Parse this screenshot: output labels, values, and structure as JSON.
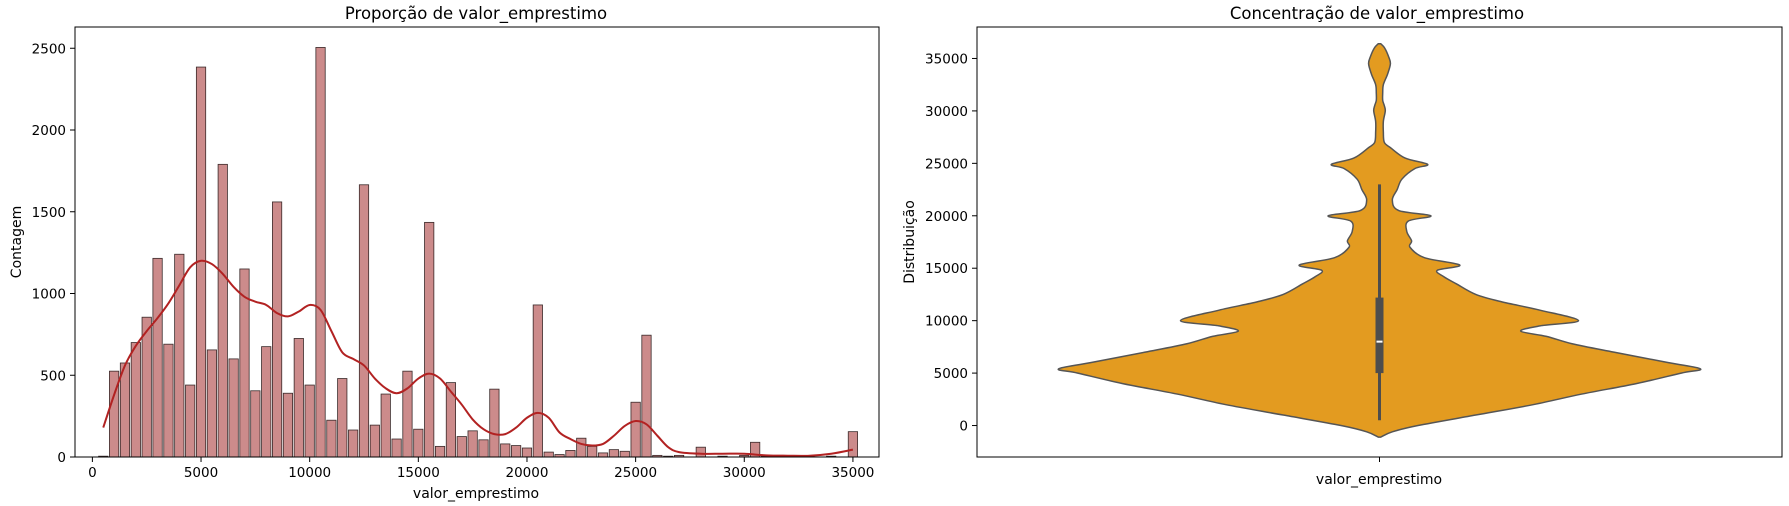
{
  "chart_data": [
    {
      "type": "bar",
      "subtype": "histogram-with-kde",
      "title": "Proporção de valor_emprestimo",
      "xlabel": "valor_emprestimo",
      "ylabel": "Contagem",
      "xlim": [
        -800,
        36200
      ],
      "ylim": [
        0,
        2630
      ],
      "xticks": [
        0,
        5000,
        10000,
        15000,
        20000,
        25000,
        30000,
        35000
      ],
      "yticks": [
        0,
        500,
        1000,
        1500,
        2000,
        2500
      ],
      "grid": false,
      "colors": {
        "bar_fill": "#cc8b8b",
        "bar_edge": "#3a2a2a",
        "kde_line": "#b22222"
      },
      "bin_width": 430,
      "bins": [
        {
          "x": 500,
          "count": 5
        },
        {
          "x": 1000,
          "count": 525
        },
        {
          "x": 1500,
          "count": 575
        },
        {
          "x": 2000,
          "count": 700
        },
        {
          "x": 2500,
          "count": 855
        },
        {
          "x": 3000,
          "count": 1215
        },
        {
          "x": 3500,
          "count": 690
        },
        {
          "x": 4000,
          "count": 1240
        },
        {
          "x": 4500,
          "count": 440
        },
        {
          "x": 5000,
          "count": 2385
        },
        {
          "x": 5500,
          "count": 655
        },
        {
          "x": 6000,
          "count": 1790
        },
        {
          "x": 6500,
          "count": 600
        },
        {
          "x": 7000,
          "count": 1150
        },
        {
          "x": 7500,
          "count": 405
        },
        {
          "x": 8000,
          "count": 675
        },
        {
          "x": 8500,
          "count": 1560
        },
        {
          "x": 9000,
          "count": 390
        },
        {
          "x": 9500,
          "count": 725
        },
        {
          "x": 10000,
          "count": 440
        },
        {
          "x": 10500,
          "count": 2505
        },
        {
          "x": 11000,
          "count": 225
        },
        {
          "x": 11500,
          "count": 480
        },
        {
          "x": 12000,
          "count": 165
        },
        {
          "x": 12500,
          "count": 1665
        },
        {
          "x": 13000,
          "count": 195
        },
        {
          "x": 13500,
          "count": 385
        },
        {
          "x": 14000,
          "count": 110
        },
        {
          "x": 14500,
          "count": 525
        },
        {
          "x": 15000,
          "count": 170
        },
        {
          "x": 15500,
          "count": 1435
        },
        {
          "x": 16000,
          "count": 65
        },
        {
          "x": 16500,
          "count": 455
        },
        {
          "x": 17000,
          "count": 125
        },
        {
          "x": 17500,
          "count": 160
        },
        {
          "x": 18000,
          "count": 105
        },
        {
          "x": 18500,
          "count": 415
        },
        {
          "x": 19000,
          "count": 80
        },
        {
          "x": 19500,
          "count": 70
        },
        {
          "x": 20000,
          "count": 55
        },
        {
          "x": 20500,
          "count": 930
        },
        {
          "x": 21000,
          "count": 30
        },
        {
          "x": 21500,
          "count": 15
        },
        {
          "x": 22000,
          "count": 40
        },
        {
          "x": 22500,
          "count": 115
        },
        {
          "x": 23000,
          "count": 65
        },
        {
          "x": 23500,
          "count": 25
        },
        {
          "x": 24000,
          "count": 45
        },
        {
          "x": 24500,
          "count": 35
        },
        {
          "x": 25000,
          "count": 335
        },
        {
          "x": 25500,
          "count": 745
        },
        {
          "x": 26000,
          "count": 10
        },
        {
          "x": 26500,
          "count": 5
        },
        {
          "x": 27000,
          "count": 10
        },
        {
          "x": 28000,
          "count": 60
        },
        {
          "x": 29000,
          "count": 5
        },
        {
          "x": 30000,
          "count": 10
        },
        {
          "x": 30500,
          "count": 90
        },
        {
          "x": 31000,
          "count": 5
        },
        {
          "x": 32000,
          "count": 5
        },
        {
          "x": 33000,
          "count": 5
        },
        {
          "x": 34000,
          "count": 5
        },
        {
          "x": 35000,
          "count": 155
        }
      ],
      "kde": {
        "x": [
          500,
          1000,
          1500,
          2000,
          2500,
          3000,
          3500,
          4000,
          4500,
          5000,
          5500,
          6000,
          6500,
          7000,
          7500,
          8000,
          8500,
          9000,
          9500,
          10000,
          10500,
          11000,
          11500,
          12000,
          12500,
          13000,
          13500,
          14000,
          14500,
          15000,
          15500,
          16000,
          16500,
          17000,
          17500,
          18000,
          18500,
          19000,
          19500,
          20000,
          20500,
          21000,
          21500,
          22000,
          22500,
          23000,
          23500,
          24000,
          24500,
          25000,
          25500,
          26000,
          26500,
          27000,
          28000,
          29000,
          30000,
          31000,
          32000,
          33000,
          34000,
          35000
        ],
        "y": [
          180,
          380,
          560,
          680,
          770,
          850,
          940,
          1050,
          1160,
          1200,
          1180,
          1120,
          1040,
          980,
          950,
          930,
          880,
          860,
          890,
          930,
          900,
          770,
          640,
          600,
          560,
          480,
          420,
          390,
          420,
          480,
          510,
          480,
          400,
          320,
          230,
          170,
          140,
          140,
          180,
          240,
          270,
          240,
          150,
          110,
          80,
          70,
          80,
          130,
          190,
          220,
          200,
          130,
          60,
          30,
          20,
          20,
          20,
          10,
          8,
          8,
          20,
          45
        ]
      }
    },
    {
      "type": "violin",
      "title": "Concentração de valor_emprestimo",
      "xlabel": "valor_emprestimo",
      "ylabel": "Distribuição",
      "categories": [
        "valor_emprestimo"
      ],
      "ylim": [
        -3000,
        38000
      ],
      "yticks": [
        0,
        5000,
        10000,
        15000,
        20000,
        25000,
        30000,
        35000
      ],
      "grid": false,
      "colors": {
        "fill": "#e39b20",
        "edge": "#555555",
        "box": "#4d4d4d",
        "median": "#ffffff"
      },
      "box": {
        "min": 500,
        "q1": 5000,
        "median": 8000,
        "q3": 12200,
        "max": 23000
      },
      "density_profile": {
        "values": [
          -1100,
          -600,
          0,
          1000,
          2000,
          3000,
          4000,
          5000,
          5400,
          6000,
          7000,
          7800,
          8500,
          9000,
          9500,
          10000,
          11000,
          11800,
          12500,
          13500,
          14200,
          14800,
          15300,
          16000,
          17000,
          17600,
          18500,
          19500,
          20000,
          20500,
          21500,
          22500,
          23500,
          24500,
          24900,
          25500,
          26500,
          27000,
          28000,
          29000,
          30000,
          30500,
          31000,
          31700,
          32500,
          33500,
          34500,
          35200,
          36000,
          36400
        ],
        "half_widths": [
          0.004,
          0.04,
          0.12,
          0.3,
          0.48,
          0.63,
          0.8,
          0.94,
          1.0,
          0.9,
          0.73,
          0.6,
          0.52,
          0.44,
          0.5,
          0.62,
          0.5,
          0.38,
          0.3,
          0.24,
          0.2,
          0.18,
          0.25,
          0.14,
          0.095,
          0.1,
          0.085,
          0.09,
          0.16,
          0.06,
          0.04,
          0.055,
          0.07,
          0.11,
          0.15,
          0.08,
          0.034,
          0.015,
          0.012,
          0.012,
          0.018,
          0.015,
          0.01,
          0.01,
          0.012,
          0.025,
          0.034,
          0.028,
          0.016,
          0.004
        ]
      }
    }
  ]
}
